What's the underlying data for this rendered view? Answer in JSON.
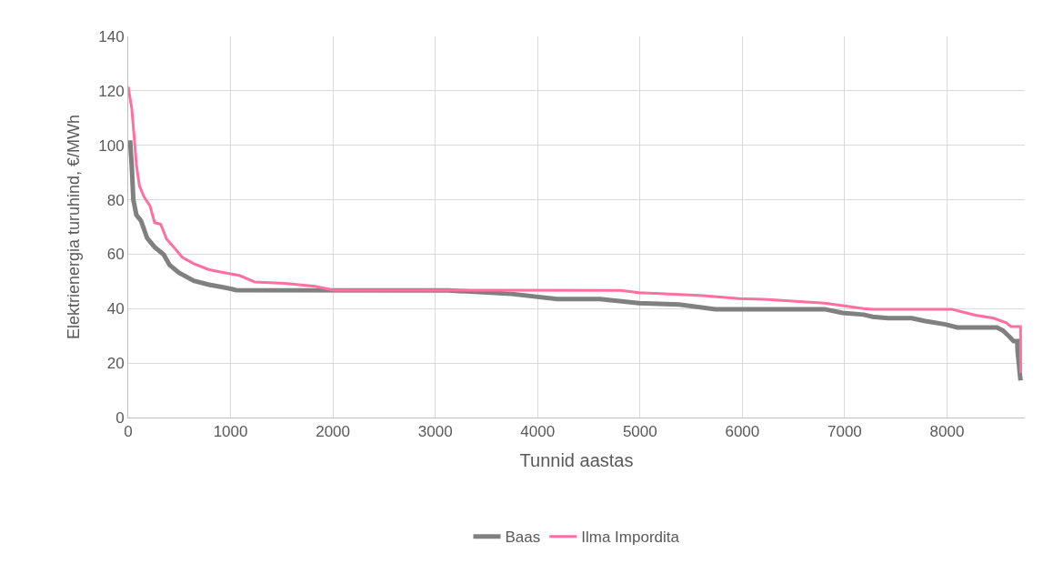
{
  "chart_data": {
    "type": "line",
    "xlabel": "Tunnid aastas",
    "ylabel": "Elektrienergia turuhind, €/MWh",
    "xlim": [
      0,
      8760
    ],
    "xticks": [
      0,
      1000,
      2000,
      3000,
      4000,
      5000,
      6000,
      7000,
      8000
    ],
    "ylim": [
      0,
      140
    ],
    "yticks": [
      0,
      20,
      40,
      60,
      80,
      100,
      120,
      140
    ],
    "grid": true,
    "legend": "bottom",
    "marker": "none",
    "line_style": "solid",
    "series": [
      {
        "name": "Baas",
        "color": "#808080",
        "x": [
          0,
          20,
          35,
          50,
          80,
          125,
          184,
          258,
          346,
          405,
          494,
          640,
          790,
          938,
          1056,
          3126,
          3748,
          4192,
          4609,
          4991,
          5382,
          5737,
          6803,
          6980,
          7185,
          7273,
          7422,
          7655,
          7777,
          7984,
          8100,
          8488,
          8545,
          8606,
          8650,
          8686,
          8690,
          8718
        ],
        "values": [
          101,
          101,
          92,
          80,
          74.4,
          72.3,
          66,
          62.6,
          59.9,
          56,
          53.2,
          50.2,
          48.8,
          47.8,
          46.8,
          46.7,
          45.4,
          43.5,
          43.5,
          42,
          41.5,
          39.8,
          39.8,
          38.4,
          37.8,
          37,
          36.5,
          36.5,
          35.5,
          34.2,
          33.1,
          33.1,
          32,
          29.8,
          28.1,
          28.1,
          24.2,
          13.6
        ]
      },
      {
        "name": "Ilma Impordita",
        "color": "#ff6fa0",
        "x": [
          0,
          35,
          65,
          80,
          110,
          155,
          213,
          258,
          317,
          376,
          453,
          527,
          640,
          790,
          938,
          1085,
          1235,
          1530,
          1827,
          2005,
          4813,
          4991,
          5613,
          5968,
          6208,
          6803,
          7185,
          7273,
          8044,
          8162,
          8277,
          8455,
          8579,
          8624,
          8718,
          8720
        ],
        "values": [
          121.5,
          113.4,
          100,
          92.7,
          85,
          81,
          77.7,
          71.6,
          71,
          65.5,
          62.2,
          58.9,
          56.5,
          54.3,
          53.2,
          52.2,
          49.8,
          49.3,
          48.2,
          46.8,
          46.7,
          45.9,
          44.8,
          43.7,
          43.4,
          42,
          40,
          39.8,
          39.8,
          38.7,
          37.6,
          36.5,
          34.8,
          33.4,
          33.4,
          16.4
        ]
      }
    ]
  }
}
